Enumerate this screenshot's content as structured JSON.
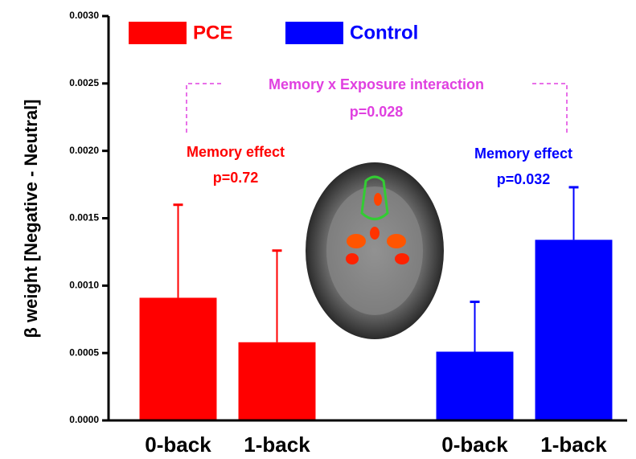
{
  "chart_data": {
    "type": "bar",
    "ylabel": "β weight [Negative - Neutral]",
    "categories": [
      "0-back",
      "1-back",
      null,
      "0-back",
      "1-back"
    ],
    "series": [
      {
        "name": "PCE",
        "color": "#ff0000",
        "values": [
          0.00091,
          0.00058,
          null,
          null,
          null
        ],
        "errors": [
          0.00069,
          0.00068,
          null,
          null,
          null
        ]
      },
      {
        "name": "Control",
        "color": "#0000ff",
        "values": [
          null,
          null,
          null,
          0.00051,
          0.00134
        ],
        "errors": [
          null,
          null,
          null,
          0.00037,
          0.00039
        ]
      }
    ],
    "ylim": [
      0,
      0.003
    ],
    "yticks": [
      {
        "value": 0,
        "label": "0.0000"
      },
      {
        "value": 0.0005,
        "label": "0.0005"
      },
      {
        "value": 0.001,
        "label": "0.0010"
      },
      {
        "value": 0.0015,
        "label": "0.0015"
      },
      {
        "value": 0.002,
        "label": "0.0020"
      },
      {
        "value": 0.0025,
        "label": "0.0025"
      },
      {
        "value": 0.003,
        "label": "0.0030"
      }
    ],
    "annotations": {
      "interaction": {
        "text": "Memory x Exposure interaction",
        "p": "p=0.028",
        "color": "#e040e0"
      },
      "pce_effect": {
        "text": "Memory effect",
        "p": "p=0.72",
        "color": "#ff0000"
      },
      "control_effect": {
        "text": "Memory effect",
        "p": "p=0.032",
        "color": "#0000ff"
      }
    }
  }
}
